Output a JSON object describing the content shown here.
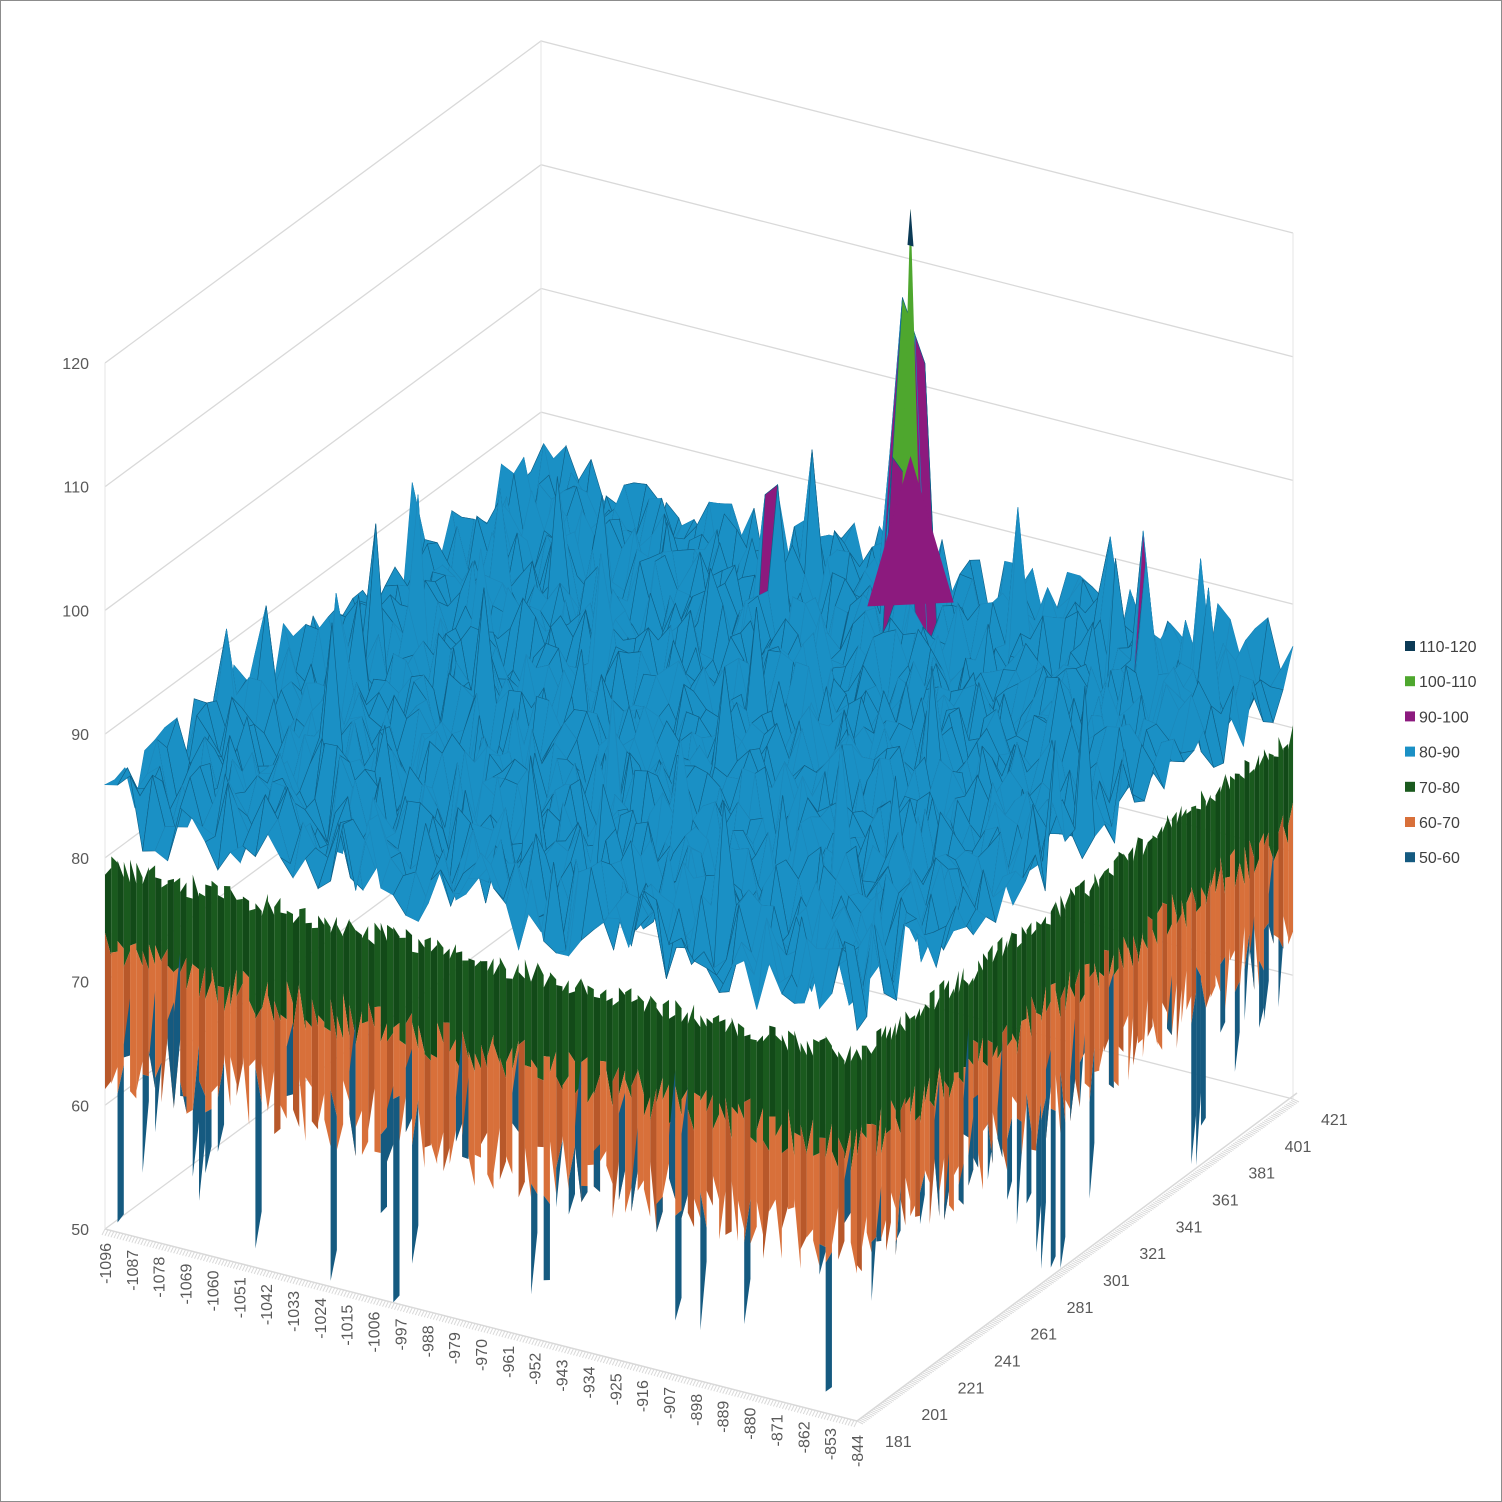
{
  "chart_data": {
    "type": "surface",
    "z_ticks": [
      "50",
      "60",
      "70",
      "80",
      "90",
      "100",
      "110",
      "120"
    ],
    "zlim": [
      50,
      120
    ],
    "x_ticks": [
      "-1096",
      "-1087",
      "-1078",
      "-1069",
      "-1060",
      "-1051",
      "-1042",
      "-1033",
      "-1024",
      "-1015",
      "-1006",
      "-997",
      "-988",
      "-979",
      "-970",
      "-961",
      "-952",
      "-943",
      "-934",
      "-925",
      "-916",
      "-907",
      "-898",
      "-889",
      "-880",
      "-871",
      "-862",
      "-853",
      "-844"
    ],
    "y_ticks": [
      "181",
      "201",
      "221",
      "241",
      "261",
      "281",
      "301",
      "321",
      "341",
      "361",
      "381",
      "401",
      "421"
    ],
    "typical_surface_level": [
      80,
      90
    ],
    "edge_dips_to": 50,
    "peak": {
      "x": -960,
      "y": 401,
      "z": 117
    },
    "secondary_peaks_level": [
      90,
      100
    ],
    "legend": {
      "position": "right",
      "items": [
        {
          "label": "110-120",
          "color": "#0b3a55"
        },
        {
          "label": "100-110",
          "color": "#4ea72e"
        },
        {
          "label": "90-100",
          "color": "#8c1a7e"
        },
        {
          "label": "80-90",
          "color": "#1a90c5"
        },
        {
          "label": "70-80",
          "color": "#1a5a1e"
        },
        {
          "label": "60-70",
          "color": "#d8703a"
        },
        {
          "label": "50-60",
          "color": "#155a80"
        }
      ]
    },
    "grid": true
  }
}
